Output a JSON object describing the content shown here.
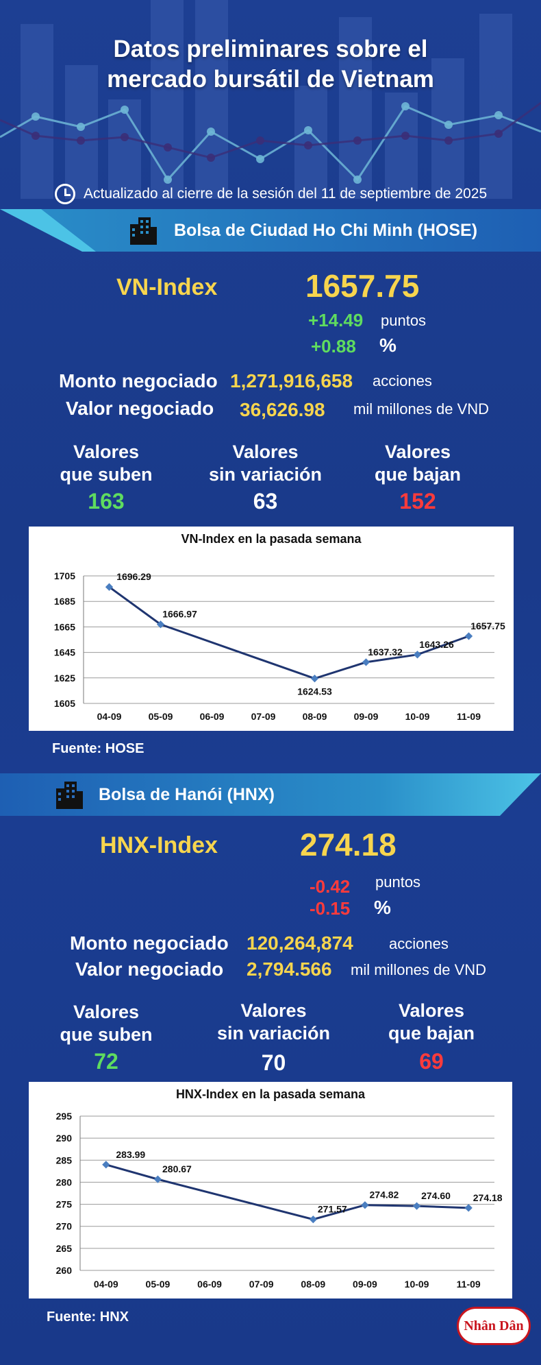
{
  "header": {
    "title_line1": "Datos preliminares sobre el",
    "title_line2": "mercado bursátil de Vietnam",
    "updated": "Actualizado al cierre de la sesión del 11 de septiembre de 2025"
  },
  "hose": {
    "banner": "Bolsa de Ciudad Ho Chi Minh (HOSE)",
    "index_name": "VN-Index",
    "index_value": "1657.75",
    "change_points": "+14.49",
    "change_points_unit": "puntos",
    "change_pct": "+0.88",
    "change_pct_unit": "%",
    "volume_label": "Monto negociado",
    "volume_value": "1,271,916,658",
    "volume_unit": "acciones",
    "value_label": "Valor negociado",
    "value_value": "36,626.98",
    "value_unit": "mil millones de VND",
    "up_label_1": "Valores",
    "up_label_2": "que suben",
    "up_count": "163",
    "flat_label_1": "Valores",
    "flat_label_2": "sin variación",
    "flat_count": "63",
    "down_label_1": "Valores",
    "down_label_2": "que bajan",
    "down_count": "152",
    "source": "Fuente: HOSE"
  },
  "hnx": {
    "banner": "Bolsa de Hanói (HNX)",
    "index_name": "HNX-Index",
    "index_value": "274.18",
    "change_points": "-0.42",
    "change_points_unit": "puntos",
    "change_pct": "-0.15",
    "change_pct_unit": "%",
    "volume_label": "Monto negociado",
    "volume_value": "120,264,874",
    "volume_unit": "acciones",
    "value_label": "Valor negociado",
    "value_value": "2,794.566",
    "value_unit": "mil millones de VND",
    "up_label_1": "Valores",
    "up_label_2": "que suben",
    "up_count": "72",
    "flat_label_1": "Valores",
    "flat_label_2": "sin variación",
    "flat_count": "70",
    "down_label_1": "Valores",
    "down_label_2": "que bajan",
    "down_count": "69",
    "source": "Fuente:  HNX"
  },
  "logo": "Nhân Dân",
  "colors": {
    "background": "#1b3d91",
    "accent_yellow": "#f7d54e",
    "up_green": "#5fdc5f",
    "down_red": "#ff3b3b",
    "line": "#1f3570",
    "marker": "#4a7ec0"
  },
  "chart_data": [
    {
      "type": "line",
      "title": "VN-Index en la pasada semana",
      "categories": [
        "04-09",
        "05-09",
        "06-09",
        "07-09",
        "08-09",
        "09-09",
        "10-09",
        "11-09"
      ],
      "series": [
        {
          "name": "VN-Index",
          "values": [
            1696.29,
            1666.97,
            null,
            null,
            1624.53,
            1637.32,
            1643.26,
            1657.75
          ]
        }
      ],
      "data_labels": [
        "1696.29",
        "1666.97",
        "",
        "",
        "1624.53",
        "1637.32",
        "1643.26",
        "1657.75"
      ],
      "yticks": [
        1605,
        1625,
        1645,
        1665,
        1685,
        1705
      ],
      "ylim": [
        1605,
        1705
      ],
      "xlabel": "",
      "ylabel": "",
      "grid": true,
      "legend": "none"
    },
    {
      "type": "line",
      "title": "HNX-Index en la pasada semana",
      "categories": [
        "04-09",
        "05-09",
        "06-09",
        "07-09",
        "08-09",
        "09-09",
        "10-09",
        "11-09"
      ],
      "series": [
        {
          "name": "HNX-Index",
          "values": [
            283.99,
            280.67,
            null,
            null,
            271.57,
            274.82,
            274.6,
            274.18
          ]
        }
      ],
      "data_labels": [
        "283.99",
        "280.67",
        "",
        "",
        "271.57",
        "274.82",
        "274.60",
        "274.18"
      ],
      "yticks": [
        260,
        265,
        270,
        275,
        280,
        285,
        290,
        295
      ],
      "ylim": [
        260,
        295
      ],
      "xlabel": "",
      "ylabel": "",
      "grid": true,
      "legend": "none"
    }
  ]
}
